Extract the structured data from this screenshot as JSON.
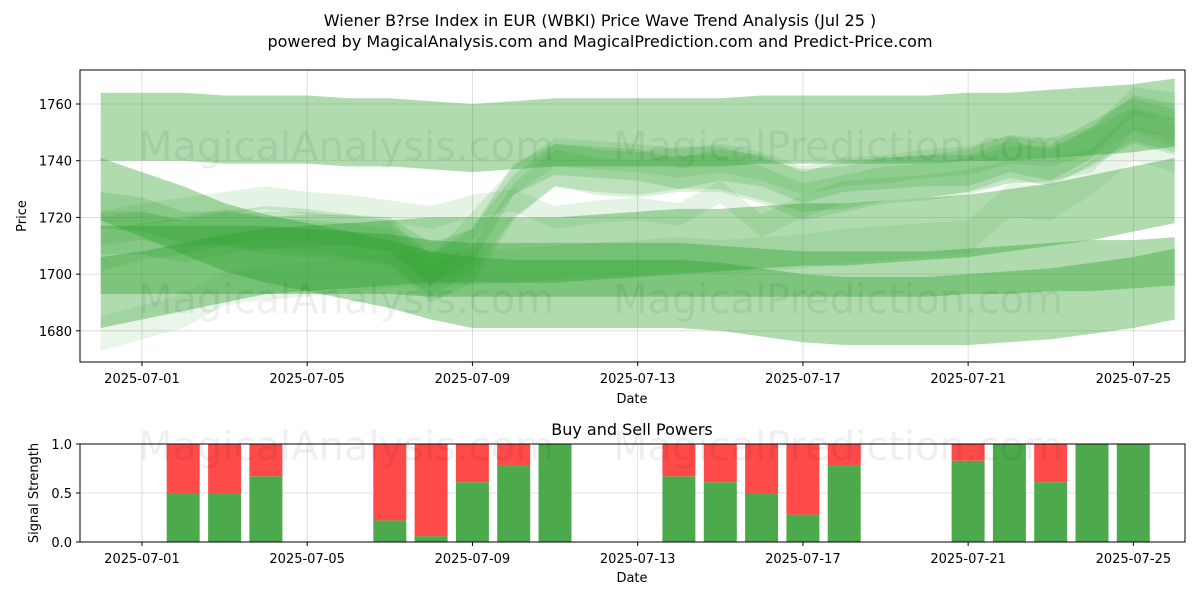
{
  "figure": {
    "title_line1": "Wiener B?rse Index in EUR (WBKI) Price Wave Trend Analysis (Jul 25 )",
    "title_line2": "powered by MagicalAnalysis.com and MagicalPrediction.com and Predict-Price.com",
    "watermark_left": "MagicalAnalysis.com",
    "watermark_right": "MagicalPrediction.com"
  },
  "colors": {
    "wave": "#2ca02c",
    "buy": "#4caa4c",
    "sell": "#ff4a4a"
  },
  "chart_data": [
    {
      "type": "area",
      "title": "",
      "xlabel": "Date",
      "ylabel": "Price",
      "xlim": [
        "2025-06-29T12:00",
        "2025-07-26T06:00"
      ],
      "ylim": [
        1669,
        1772
      ],
      "xticks": [
        "2025-07-01",
        "2025-07-05",
        "2025-07-09",
        "2025-07-13",
        "2025-07-17",
        "2025-07-21",
        "2025-07-25"
      ],
      "yticks": [
        1680,
        1700,
        1720,
        1740,
        1760
      ],
      "grid": true,
      "dates": [
        "2025-06-30",
        "2025-07-01",
        "2025-07-02",
        "2025-07-03",
        "2025-07-04",
        "2025-07-05",
        "2025-07-06",
        "2025-07-07",
        "2025-07-08",
        "2025-07-09",
        "2025-07-10",
        "2025-07-11",
        "2025-07-12",
        "2025-07-13",
        "2025-07-14",
        "2025-07-15",
        "2025-07-16",
        "2025-07-17",
        "2025-07-18",
        "2025-07-19",
        "2025-07-20",
        "2025-07-21",
        "2025-07-22",
        "2025-07-23",
        "2025-07-24",
        "2025-07-25",
        "2025-07-26"
      ],
      "series": [
        {
          "upper": [
            1764,
            1764,
            1764,
            1763,
            1763,
            1763,
            1762,
            1762,
            1761,
            1760,
            1761,
            1762,
            1762,
            1762,
            1762,
            1762,
            1763,
            1763,
            1763,
            1763,
            1763,
            1764,
            1764,
            1765,
            1766,
            1767,
            1769
          ],
          "lower": [
            1740,
            1740,
            1740,
            1739,
            1739,
            1739,
            1738,
            1738,
            1737,
            1736,
            1737,
            1738,
            1738,
            1738,
            1738,
            1738,
            1739,
            1739,
            1739,
            1739,
            1739,
            1740,
            1740,
            1741,
            1742,
            1743,
            1745
          ],
          "opacity": 0.38
        },
        {
          "upper": [
            1717,
            1717,
            1717,
            1717,
            1717,
            1716,
            1715,
            1714,
            1712,
            1711,
            1711,
            1711,
            1711,
            1711,
            1711,
            1710,
            1709,
            1708,
            1708,
            1708,
            1708,
            1709,
            1710,
            1711,
            1712,
            1712,
            1713
          ],
          "lower": [
            1693,
            1693,
            1693,
            1693,
            1693,
            1693,
            1693,
            1693,
            1692,
            1692,
            1692,
            1692,
            1692,
            1692,
            1692,
            1692,
            1692,
            1692,
            1692,
            1692,
            1692,
            1693,
            1693,
            1694,
            1694,
            1695,
            1696
          ],
          "opacity": 0.38
        },
        {
          "upper": [
            1741,
            1736,
            1731,
            1725,
            1721,
            1718,
            1715,
            1712,
            1708,
            1706,
            1705,
            1705,
            1705,
            1705,
            1705,
            1704,
            1702,
            1700,
            1699,
            1699,
            1699,
            1700,
            1701,
            1702,
            1704,
            1706,
            1709
          ],
          "lower": [
            1719,
            1713,
            1707,
            1701,
            1697,
            1694,
            1691,
            1688,
            1684,
            1681,
            1681,
            1681,
            1681,
            1681,
            1681,
            1680,
            1678,
            1676,
            1675,
            1675,
            1675,
            1675,
            1676,
            1677,
            1679,
            1681,
            1684
          ],
          "opacity": 0.38
        },
        {
          "upper": [
            1706,
            1708,
            1711,
            1714,
            1716,
            1717,
            1718,
            1719,
            1720,
            1720,
            1720,
            1720,
            1721,
            1722,
            1723,
            1723,
            1724,
            1725,
            1725,
            1726,
            1727,
            1728,
            1730,
            1732,
            1735,
            1738,
            1741
          ],
          "lower": [
            1681,
            1684,
            1687,
            1690,
            1693,
            1694,
            1695,
            1696,
            1697,
            1697,
            1697,
            1697,
            1698,
            1699,
            1700,
            1701,
            1702,
            1703,
            1703,
            1704,
            1705,
            1706,
            1708,
            1710,
            1712,
            1715,
            1718
          ],
          "opacity": 0.38
        },
        {
          "upper": [
            1729,
            1727,
            1722,
            1722,
            1720,
            1721,
            1721,
            1720,
            1711,
            1716,
            1739,
            1746,
            1745,
            1744,
            1741,
            1744,
            1742,
            1736,
            1740,
            1741,
            1742,
            1742,
            1747,
            1744,
            1752,
            1763,
            1760
          ],
          "lower": [
            1716,
            1715,
            1711,
            1710,
            1709,
            1710,
            1710,
            1708,
            1697,
            1704,
            1728,
            1735,
            1734,
            1733,
            1730,
            1733,
            1731,
            1725,
            1729,
            1730,
            1731,
            1731,
            1736,
            1733,
            1741,
            1751,
            1748
          ],
          "opacity": 0.2
        },
        {
          "upper": [
            1714,
            1718,
            1720,
            1723,
            1720,
            1719,
            1718,
            1716,
            1703,
            1710,
            1732,
            1744,
            1741,
            1740,
            1742,
            1742,
            1738,
            1732,
            1735,
            1738,
            1739,
            1741,
            1745,
            1745,
            1751,
            1759,
            1755
          ],
          "lower": [
            1701,
            1705,
            1707,
            1710,
            1707,
            1706,
            1705,
            1703,
            1690,
            1697,
            1719,
            1731,
            1728,
            1727,
            1729,
            1729,
            1725,
            1719,
            1722,
            1725,
            1726,
            1728,
            1732,
            1732,
            1738,
            1746,
            1742
          ],
          "opacity": 0.16
        },
        {
          "upper": [
            1720,
            1722,
            1719,
            1721,
            1722,
            1722,
            1720,
            1718,
            1706,
            1722,
            1738,
            1748,
            1747,
            1746,
            1744,
            1746,
            1743,
            1738,
            1741,
            1742,
            1744,
            1745,
            1749,
            1748,
            1752,
            1766,
            1764
          ],
          "lower": [
            1710,
            1712,
            1709,
            1711,
            1712,
            1712,
            1710,
            1708,
            1696,
            1712,
            1728,
            1738,
            1737,
            1736,
            1734,
            1736,
            1733,
            1728,
            1731,
            1732,
            1734,
            1735,
            1739,
            1738,
            1742,
            1756,
            1754
          ],
          "opacity": 0.14
        },
        {
          "upper": [
            1722,
            1725,
            1727,
            1729,
            1731,
            1729,
            1728,
            1726,
            1724,
            1728,
            1730,
            1724,
            1726,
            1727,
            1725,
            1733,
            1721,
            1728,
            1733,
            1734,
            1735,
            1737,
            1740,
            1741,
            1744,
            1758,
            1753
          ],
          "lower": [
            1714,
            1717,
            1719,
            1721,
            1723,
            1721,
            1720,
            1718,
            1716,
            1720,
            1722,
            1716,
            1718,
            1719,
            1717,
            1725,
            1713,
            1720,
            1725,
            1726,
            1727,
            1729,
            1732,
            1733,
            1736,
            1750,
            1745
          ],
          "opacity": 0.12
        },
        {
          "upper": [
            1685,
            1689,
            1693,
            1701,
            1703,
            1704,
            1706,
            1707,
            1708,
            1708,
            1709,
            1710,
            1711,
            1712,
            1713,
            1712,
            1713,
            1714,
            1716,
            1717,
            1718,
            1719,
            1732,
            1731,
            1740,
            1752,
            1748
          ],
          "lower": [
            1673,
            1677,
            1681,
            1689,
            1691,
            1692,
            1694,
            1695,
            1696,
            1696,
            1697,
            1698,
            1699,
            1700,
            1701,
            1700,
            1701,
            1702,
            1704,
            1705,
            1706,
            1707,
            1720,
            1719,
            1728,
            1740,
            1736
          ],
          "opacity": 0.1
        },
        {
          "upper": [
            1722,
            1722,
            1719,
            1722,
            1724,
            1723,
            1721,
            1719,
            1707,
            1716,
            1735,
            1746,
            1744,
            1743,
            1745,
            1745,
            1741,
            1737,
            1738,
            1741,
            1742,
            1744,
            1749,
            1746,
            1754,
            1762,
            1758
          ],
          "lower": [
            1707,
            1707,
            1704,
            1707,
            1709,
            1708,
            1706,
            1704,
            1692,
            1701,
            1720,
            1731,
            1729,
            1728,
            1730,
            1730,
            1726,
            1722,
            1723,
            1726,
            1727,
            1729,
            1734,
            1731,
            1739,
            1747,
            1743
          ],
          "opacity": 0.18
        }
      ]
    },
    {
      "type": "bar",
      "title": "Buy and Sell Powers",
      "xlabel": "Date",
      "ylabel": "Signal Strength",
      "xlim": [
        "2025-06-29T12:00",
        "2025-07-26T06:00"
      ],
      "ylim": [
        0,
        1
      ],
      "xticks": [
        "2025-07-01",
        "2025-07-05",
        "2025-07-09",
        "2025-07-13",
        "2025-07-17",
        "2025-07-21",
        "2025-07-25"
      ],
      "yticks": [
        "0.0",
        "0.5",
        "1.0"
      ],
      "grid": true,
      "dates": [
        "2025-07-02",
        "2025-07-03",
        "2025-07-04",
        "2025-07-07",
        "2025-07-08",
        "2025-07-09",
        "2025-07-10",
        "2025-07-11",
        "2025-07-14",
        "2025-07-15",
        "2025-07-16",
        "2025-07-17",
        "2025-07-18",
        "2025-07-21",
        "2025-07-22",
        "2025-07-23",
        "2025-07-24",
        "2025-07-25"
      ],
      "buy": [
        0.5,
        0.5,
        0.67,
        0.22,
        0.06,
        0.61,
        0.78,
        1.0,
        0.67,
        0.61,
        0.5,
        0.28,
        0.78,
        0.83,
        1.0,
        0.61,
        1.0,
        1.0
      ]
    }
  ]
}
